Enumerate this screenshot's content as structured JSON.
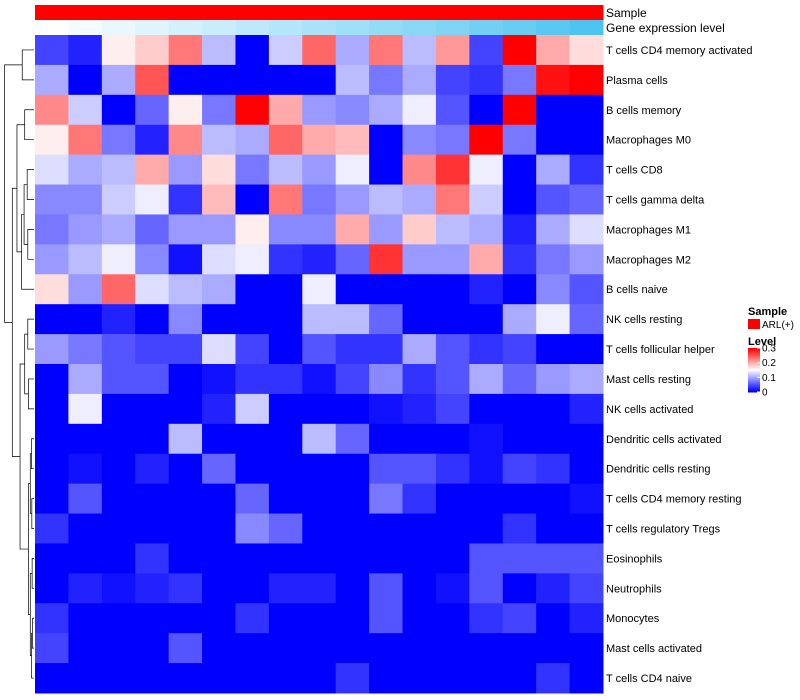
{
  "chart_data": {
    "type": "heatmap",
    "title": "",
    "annotation_rows": [
      {
        "label": "Sample",
        "color": "#ff0000"
      },
      {
        "label": "Gene expression level",
        "gradient": [
          "#ffffff",
          "#4dc3f0"
        ]
      }
    ],
    "rows": [
      "T cells CD4 memory activated",
      "Plasma cells",
      "B cells memory",
      "Macrophages M0",
      "T cells CD8",
      "T cells gamma delta",
      "Macrophages M1",
      "Macrophages M2",
      "B cells naive",
      "NK cells resting",
      "T cells follicular helper",
      "Mast cells resting",
      "NK cells activated",
      "Dendritic cells activated",
      "Dendritic cells resting",
      "T cells CD4 memory resting",
      "T cells regulatory  Tregs",
      "Eosinophils",
      "Neutrophils",
      "Monocytes",
      "Mast cells activated",
      "T cells CD4 naive"
    ],
    "n_columns": 17,
    "values": [
      [
        0.04,
        0.02,
        0.16,
        0.18,
        0.23,
        0.11,
        0.0,
        0.12,
        0.24,
        0.1,
        0.23,
        0.11,
        0.21,
        0.04,
        0.3,
        0.2,
        0.17
      ],
      [
        0.1,
        0.0,
        0.1,
        0.25,
        0.0,
        0.0,
        0.0,
        0.0,
        0.0,
        0.11,
        0.07,
        0.1,
        0.04,
        0.03,
        0.07,
        0.29,
        0.3
      ],
      [
        0.22,
        0.12,
        0.0,
        0.06,
        0.16,
        0.07,
        0.3,
        0.2,
        0.09,
        0.08,
        0.1,
        0.14,
        0.05,
        0.0,
        0.3,
        0.0,
        0.0
      ],
      [
        0.16,
        0.23,
        0.07,
        0.02,
        0.22,
        0.11,
        0.1,
        0.24,
        0.2,
        0.19,
        0.0,
        0.08,
        0.07,
        0.3,
        0.07,
        0.0,
        0.0
      ],
      [
        0.13,
        0.1,
        0.11,
        0.2,
        0.09,
        0.17,
        0.07,
        0.11,
        0.09,
        0.14,
        0.0,
        0.22,
        0.27,
        0.14,
        0.0,
        0.1,
        0.03
      ],
      [
        0.08,
        0.08,
        0.12,
        0.14,
        0.03,
        0.19,
        0.0,
        0.23,
        0.07,
        0.09,
        0.11,
        0.1,
        0.23,
        0.12,
        0.0,
        0.05,
        0.06
      ],
      [
        0.07,
        0.09,
        0.1,
        0.06,
        0.09,
        0.09,
        0.16,
        0.08,
        0.08,
        0.2,
        0.09,
        0.18,
        0.11,
        0.1,
        0.02,
        0.1,
        0.13
      ],
      [
        0.09,
        0.11,
        0.14,
        0.08,
        0.01,
        0.13,
        0.14,
        0.03,
        0.02,
        0.06,
        0.27,
        0.09,
        0.09,
        0.2,
        0.03,
        0.07,
        0.09
      ],
      [
        0.17,
        0.09,
        0.24,
        0.13,
        0.11,
        0.1,
        0.0,
        0.0,
        0.14,
        0.0,
        0.0,
        0.0,
        0.0,
        0.02,
        0.0,
        0.08,
        0.05
      ],
      [
        0.0,
        0.0,
        0.02,
        0.0,
        0.08,
        0.0,
        0.0,
        0.0,
        0.11,
        0.11,
        0.06,
        0.0,
        0.0,
        0.0,
        0.1,
        0.14,
        0.06
      ],
      [
        0.09,
        0.07,
        0.05,
        0.04,
        0.04,
        0.13,
        0.04,
        0.0,
        0.05,
        0.03,
        0.03,
        0.1,
        0.05,
        0.03,
        0.04,
        0.0,
        0.0
      ],
      [
        0.0,
        0.1,
        0.05,
        0.05,
        0.0,
        0.01,
        0.03,
        0.03,
        0.01,
        0.04,
        0.08,
        0.03,
        0.05,
        0.1,
        0.06,
        0.09,
        0.1
      ],
      [
        0.0,
        0.14,
        0.0,
        0.0,
        0.0,
        0.02,
        0.12,
        0.0,
        0.0,
        0.0,
        0.01,
        0.02,
        0.04,
        0.0,
        0.0,
        0.0,
        0.02
      ],
      [
        0.0,
        0.0,
        0.0,
        0.0,
        0.11,
        0.0,
        0.0,
        0.0,
        0.11,
        0.06,
        0.0,
        0.0,
        0.0,
        0.01,
        0.0,
        0.0,
        0.0
      ],
      [
        0.0,
        0.01,
        0.0,
        0.02,
        0.0,
        0.06,
        0.0,
        0.0,
        0.0,
        0.0,
        0.05,
        0.05,
        0.03,
        0.01,
        0.04,
        0.03,
        0.0
      ],
      [
        0.0,
        0.05,
        0.0,
        0.0,
        0.0,
        0.0,
        0.06,
        0.0,
        0.0,
        0.0,
        0.07,
        0.03,
        0.0,
        0.0,
        0.0,
        0.0,
        0.01
      ],
      [
        0.03,
        0.0,
        0.0,
        0.0,
        0.0,
        0.0,
        0.08,
        0.06,
        0.0,
        0.0,
        0.0,
        0.0,
        0.0,
        0.0,
        0.03,
        0.0,
        0.0
      ],
      [
        0.0,
        0.0,
        0.0,
        0.03,
        0.0,
        0.0,
        0.0,
        0.0,
        0.0,
        0.0,
        0.0,
        0.0,
        0.0,
        0.05,
        0.05,
        0.05,
        0.05
      ],
      [
        0.0,
        0.02,
        0.01,
        0.02,
        0.03,
        0.0,
        0.0,
        0.02,
        0.02,
        0.0,
        0.05,
        0.0,
        0.01,
        0.05,
        0.0,
        0.02,
        0.04
      ],
      [
        0.03,
        0.0,
        0.0,
        0.0,
        0.0,
        0.0,
        0.03,
        0.0,
        0.0,
        0.0,
        0.05,
        0.0,
        0.0,
        0.03,
        0.04,
        0.0,
        0.02
      ],
      [
        0.04,
        0.0,
        0.0,
        0.0,
        0.05,
        0.0,
        0.0,
        0.0,
        0.0,
        0.0,
        0.0,
        0.0,
        0.0,
        0.0,
        0.0,
        0.0,
        0.0
      ],
      [
        0.0,
        0.0,
        0.0,
        0.0,
        0.0,
        0.0,
        0.0,
        0.0,
        0.0,
        0.03,
        0.0,
        0.0,
        0.0,
        0.0,
        0.0,
        0.03,
        0.0
      ]
    ],
    "expression_level": [
      0.0,
      0.06,
      0.12,
      0.18,
      0.24,
      0.3,
      0.36,
      0.42,
      0.48,
      0.54,
      0.6,
      0.66,
      0.72,
      0.78,
      0.84,
      0.92,
      1.0
    ],
    "color_scale": {
      "low": "#0000ff",
      "mid": "#ffffff",
      "high": "#ff0000",
      "min": 0,
      "mid_value": 0.15,
      "max": 0.3
    },
    "legend": {
      "placement": "right",
      "sample_title": "Sample",
      "sample_entry": "ARL(+)",
      "sample_color": "#ff0000",
      "level_title": "Level",
      "level_ticks": [
        {
          "value": 0.3,
          "label": "0.3"
        },
        {
          "value": 0.2,
          "label": "0.2"
        },
        {
          "value": 0.1,
          "label": "0.1"
        },
        {
          "value": 0,
          "label": "0"
        }
      ]
    },
    "dendrogram": "left"
  }
}
